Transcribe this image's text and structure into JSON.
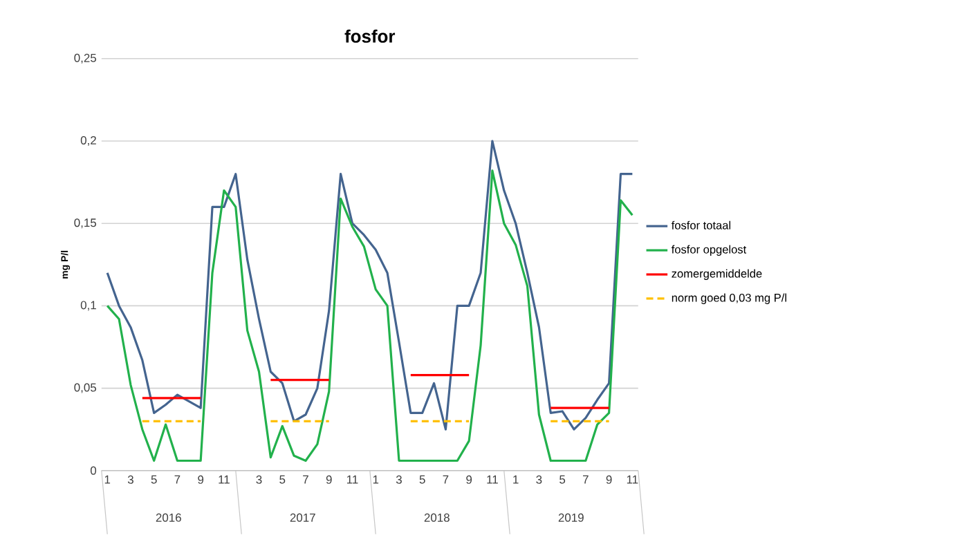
{
  "chart_data": {
    "type": "line",
    "title": "fosfor",
    "ylabel": "mg P/l",
    "categories": [
      "1",
      null,
      "3",
      null,
      "5",
      null,
      "7",
      null,
      "9",
      null,
      "11",
      null,
      null,
      "3",
      null,
      "5",
      null,
      "7",
      null,
      "9",
      null,
      "11",
      null,
      "1",
      null,
      "3",
      null,
      "5",
      null,
      "7",
      null,
      "9",
      null,
      "11",
      null,
      "1",
      null,
      "3",
      null,
      "5",
      null,
      "7",
      null,
      "9",
      null,
      "11"
    ],
    "series": [
      {
        "name": "fosfor totaal",
        "color": "#44648f",
        "values": [
          0.12,
          0.1,
          0.087,
          0.067,
          0.035,
          0.04,
          0.046,
          0.042,
          0.038,
          0.16,
          0.16,
          0.18,
          0.128,
          0.092,
          0.06,
          0.053,
          0.03,
          0.034,
          0.05,
          0.097,
          0.18,
          0.15,
          0.143,
          0.134,
          0.12,
          0.078,
          0.035,
          0.035,
          0.053,
          0.025,
          0.1,
          0.1,
          0.12,
          0.2,
          0.17,
          0.15,
          0.12,
          0.087,
          0.035,
          0.036,
          0.025,
          0.032,
          0.043,
          0.053,
          0.18,
          0.18
        ]
      },
      {
        "name": "fosfor opgelost",
        "color": "#22b14c",
        "values": [
          0.1,
          0.092,
          0.052,
          0.025,
          0.006,
          0.028,
          0.006,
          0.006,
          0.006,
          0.12,
          0.17,
          0.16,
          0.085,
          0.06,
          0.008,
          0.027,
          0.009,
          0.006,
          0.016,
          0.048,
          0.165,
          0.148,
          0.136,
          0.11,
          0.1,
          0.006,
          0.006,
          0.006,
          0.006,
          0.006,
          0.006,
          0.018,
          0.076,
          0.182,
          0.15,
          0.137,
          0.112,
          0.034,
          0.006,
          0.006,
          0.006,
          0.006,
          0.028,
          0.035,
          0.164,
          0.155
        ]
      },
      {
        "name": "zomergemiddelde",
        "color": "#ff0000",
        "values": [
          null,
          null,
          null,
          0.044,
          0.044,
          0.044,
          0.044,
          0.044,
          0.044,
          null,
          null,
          null,
          null,
          null,
          0.055,
          0.055,
          0.055,
          0.055,
          0.055,
          0.055,
          null,
          null,
          null,
          null,
          null,
          null,
          0.058,
          0.058,
          0.058,
          0.058,
          0.058,
          0.058,
          null,
          null,
          null,
          null,
          null,
          null,
          0.038,
          0.038,
          0.038,
          0.038,
          0.038,
          0.038,
          null,
          null
        ]
      },
      {
        "name": "norm goed 0,03 mg P/l",
        "color": "#ffc000",
        "line_style": "dashed",
        "values": [
          null,
          null,
          null,
          0.03,
          0.03,
          0.03,
          0.03,
          0.03,
          0.03,
          null,
          null,
          null,
          null,
          null,
          0.03,
          0.03,
          0.03,
          0.03,
          0.03,
          0.03,
          null,
          null,
          null,
          null,
          null,
          null,
          0.03,
          0.03,
          0.03,
          0.03,
          0.03,
          0.03,
          null,
          null,
          null,
          null,
          null,
          null,
          0.03,
          0.03,
          0.03,
          0.03,
          0.03,
          0.03,
          null,
          null
        ]
      }
    ],
    "ylim": [
      0,
      0.25
    ],
    "yticks": [
      0,
      {
        "value": 0.05,
        "label": "0,05"
      },
      {
        "value": 0.1,
        "label": "0,1"
      },
      {
        "value": 0.15,
        "label": "0,15"
      },
      {
        "value": 0.2,
        "label": "0,2"
      },
      {
        "value": 0.25,
        "label": "0,25"
      }
    ],
    "grid": "y",
    "legend": "right",
    "marker": "none",
    "line_style": "solid",
    "annotations": [
      "2016",
      "2017",
      "2018",
      "2019"
    ]
  }
}
